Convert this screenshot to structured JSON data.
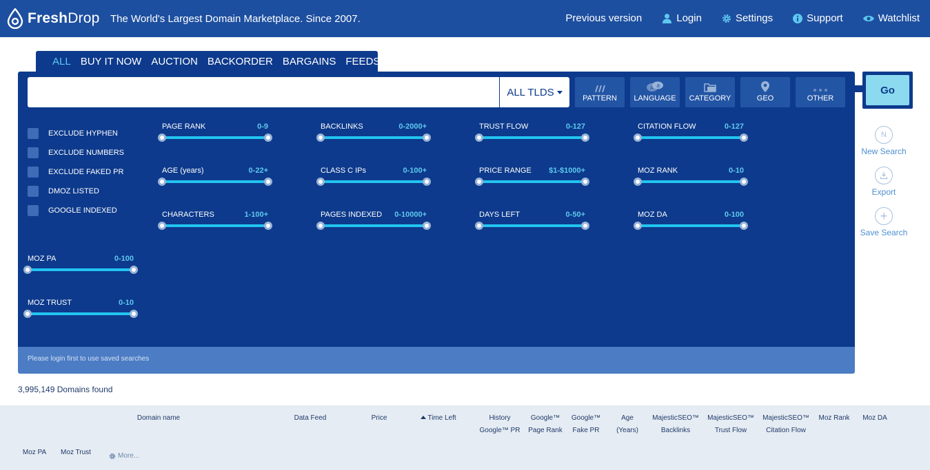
{
  "header": {
    "logo_bold": "Fresh",
    "logo_thin": "Drop",
    "tagline": "The World's Largest Domain Marketplace. Since 2007.",
    "nav": [
      {
        "label": "Previous version",
        "icon": "none"
      },
      {
        "label": "Login",
        "icon": "user-icon"
      },
      {
        "label": "Settings",
        "icon": "gear-icon"
      },
      {
        "label": "Support",
        "icon": "info-icon"
      },
      {
        "label": "Watchlist",
        "icon": "eye-icon"
      }
    ]
  },
  "tabs": [
    {
      "label": "ALL",
      "active": true
    },
    {
      "label": "BUY IT NOW"
    },
    {
      "label": "AUCTION"
    },
    {
      "label": "BACKORDER"
    },
    {
      "label": "BARGAINS"
    },
    {
      "label": "FEEDS"
    }
  ],
  "search": {
    "value": "",
    "placeholder": "",
    "tld_label": "ALL TLDS"
  },
  "filter_buttons": [
    {
      "label": "PATTERN",
      "icon": "pattern-icon"
    },
    {
      "label": "LANGUAGE",
      "icon": "language-icon"
    },
    {
      "label": "CATEGORY",
      "icon": "category-icon"
    },
    {
      "label": "GEO",
      "icon": "geo-pin-icon"
    },
    {
      "label": "OTHER",
      "icon": "dots-icon"
    }
  ],
  "checkboxes": [
    {
      "label": "EXCLUDE HYPHEN",
      "checked": false
    },
    {
      "label": "EXCLUDE NUMBERS",
      "checked": false
    },
    {
      "label": "EXCLUDE FAKED PR",
      "checked": false
    },
    {
      "label": "DMOZ LISTED",
      "checked": false
    },
    {
      "label": "GOOGLE INDEXED",
      "checked": false
    }
  ],
  "sliders": {
    "page_rank": {
      "label": "PAGE RANK",
      "range": "0-9"
    },
    "backlinks": {
      "label": "BACKLINKS",
      "range": "0-2000+"
    },
    "trust_flow": {
      "label": "TRUST FLOW",
      "range": "0-127"
    },
    "citation_flow": {
      "label": "CITATION FLOW",
      "range": "0-127"
    },
    "age": {
      "label": "AGE (years)",
      "range": "0-22+"
    },
    "class_c": {
      "label": "CLASS C IPs",
      "range": "0-100+"
    },
    "price": {
      "label": "PRICE RANGE",
      "range": "$1-$1000+"
    },
    "moz_rank": {
      "label": "MOZ RANK",
      "range": "0-10"
    },
    "characters": {
      "label": "CHARACTERS",
      "range": "1-100+"
    },
    "pages_indexed": {
      "label": "PAGES INDEXED",
      "range": "0-10000+"
    },
    "days_left": {
      "label": "DAYS LEFT",
      "range": "0-50+"
    },
    "moz_da": {
      "label": "MOZ DA",
      "range": "0-100"
    },
    "moz_pa": {
      "label": "MOZ PA",
      "range": "0-100"
    },
    "moz_trust": {
      "label": "MOZ TRUST",
      "range": "0-10"
    }
  },
  "login_note": "Please login first to use saved searches",
  "go_label": "Go",
  "side_actions": [
    {
      "label": "New Search",
      "glyph": "N",
      "icon": "new-search-icon"
    },
    {
      "label": "Export",
      "glyph": "",
      "icon": "export-icon"
    },
    {
      "label": "Save Search",
      "glyph": "+",
      "icon": "plus-icon"
    }
  ],
  "results": {
    "count": "3,995,149",
    "count_suffix": "Domains found",
    "columns": {
      "domain": "Domain name",
      "feed": "Data Feed",
      "price": "Price",
      "time_left": "Time Left",
      "history_1": "History",
      "history_2": "Google™ PR",
      "gpr_1": "Google™",
      "gpr_2": "Page Rank",
      "fake_1": "Google™",
      "fake_2": "Fake PR",
      "age_1": "Age",
      "age_2": "(Years)",
      "bl_1": "MajesticSEO™",
      "bl_2": "Backlinks",
      "tf_1": "MajesticSEO™",
      "tf_2": "Trust Flow",
      "cf_1": "MajesticSEO™",
      "cf_2": "Citation Flow",
      "moz_rank": "Moz Rank",
      "moz_da": "Moz DA",
      "moz_pa": "Moz PA",
      "moz_trust": "Moz Trust"
    },
    "more_label": "More..."
  },
  "colors": {
    "topbar": "#1d4fa0",
    "panel": "#0d3a8c",
    "accent": "#5ec8f0",
    "slider_track": "#22c4f0",
    "go_button": "#8bdaf0"
  }
}
